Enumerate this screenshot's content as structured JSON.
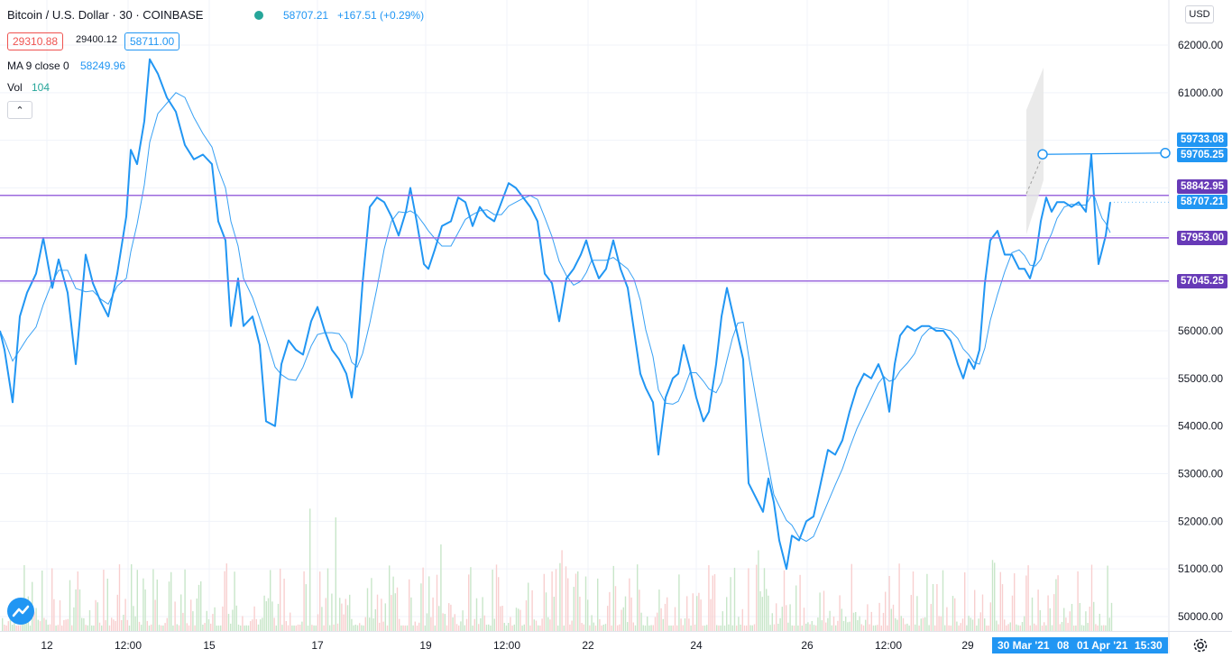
{
  "header": {
    "symbol": "Bitcoin / U.S. Dollar · 30 · COINBASE",
    "last": "58707.21",
    "change": "+167.51 (+0.29%)",
    "bid": "29310.88",
    "spread": "29400.12",
    "ask": "58711.00",
    "ma_label": "MA 9 close 0",
    "ma_value": "58249.96",
    "vol_label": "Vol",
    "vol_value": "104",
    "collapse_glyph": "⌃",
    "currency": "USD"
  },
  "colors": {
    "price_line": "#2196f3",
    "hline": "#9c6ade",
    "hline_label_bg": "#673ab7",
    "price_label_bg": "#2196f3",
    "time_label_bg": "#2196f3",
    "vol_up": "#c8e6c9",
    "vol_down": "#f8cfcf"
  },
  "price_labels": {
    "h1": "59733.08",
    "h2": "59705.25",
    "line1": "58842.95",
    "cur": "58707.21",
    "line2": "57953.00",
    "line3": "57045.25"
  },
  "time_labels": {
    "a": "30 Mar '21",
    "b": "08",
    "c": "01 Apr '21",
    "d": "15:30"
  },
  "chart_data": {
    "type": "line",
    "title": "Bitcoin / U.S. Dollar · 30 · COINBASE",
    "x_ticks": [
      "12",
      "12:00",
      "15",
      "17",
      "19",
      "12:00",
      "22",
      "24",
      "26",
      "12:00",
      "29"
    ],
    "y_ticks": [
      "62000.00",
      "61000.00",
      "60000.00",
      "59000.00",
      "58000.00",
      "57000.00",
      "56000.00",
      "55000.00",
      "54000.00",
      "53000.00",
      "52000.00",
      "51000.00",
      "50000.00"
    ],
    "ylim": [
      49900,
      62250
    ],
    "horizontal_lines": [
      58842.95,
      57953.0,
      57045.25
    ],
    "trend_line": [
      59705.25,
      59733.08
    ],
    "series": [
      {
        "points": [
          [
            0,
            56000
          ],
          [
            5,
            55600
          ],
          [
            14,
            54500
          ],
          [
            22,
            56300
          ],
          [
            30,
            56800
          ],
          [
            40,
            57200
          ],
          [
            48,
            57950
          ],
          [
            58,
            56900
          ],
          [
            65,
            57500
          ],
          [
            75,
            56800
          ],
          [
            84,
            55300
          ],
          [
            95,
            57600
          ],
          [
            103,
            57000
          ],
          [
            112,
            56600
          ],
          [
            120,
            56300
          ],
          [
            130,
            57200
          ],
          [
            140,
            58400
          ],
          [
            145,
            59800
          ],
          [
            152,
            59500
          ],
          [
            160,
            60400
          ],
          [
            166,
            61700
          ],
          [
            175,
            61400
          ],
          [
            185,
            60900
          ],
          [
            195,
            60600
          ],
          [
            205,
            59900
          ],
          [
            215,
            59600
          ],
          [
            225,
            59700
          ],
          [
            235,
            59500
          ],
          [
            242,
            58300
          ],
          [
            250,
            57900
          ],
          [
            256,
            56100
          ],
          [
            264,
            57100
          ],
          [
            270,
            56100
          ],
          [
            280,
            56300
          ],
          [
            288,
            55700
          ],
          [
            295,
            54100
          ],
          [
            305,
            54000
          ],
          [
            312,
            55300
          ],
          [
            320,
            55800
          ],
          [
            328,
            55600
          ],
          [
            336,
            55500
          ],
          [
            345,
            56200
          ],
          [
            352,
            56500
          ],
          [
            360,
            56000
          ],
          [
            368,
            55600
          ],
          [
            376,
            55400
          ],
          [
            384,
            55100
          ],
          [
            390,
            54600
          ],
          [
            396,
            55500
          ],
          [
            402,
            57000
          ],
          [
            410,
            58600
          ],
          [
            418,
            58800
          ],
          [
            426,
            58700
          ],
          [
            434,
            58400
          ],
          [
            442,
            58000
          ],
          [
            450,
            58500
          ],
          [
            455,
            59000
          ],
          [
            462,
            58300
          ],
          [
            470,
            57400
          ],
          [
            475,
            57300
          ],
          [
            482,
            57700
          ],
          [
            490,
            58200
          ],
          [
            500,
            58300
          ],
          [
            508,
            58800
          ],
          [
            516,
            58700
          ],
          [
            524,
            58200
          ],
          [
            532,
            58600
          ],
          [
            540,
            58400
          ],
          [
            548,
            58300
          ],
          [
            556,
            58700
          ],
          [
            564,
            59100
          ],
          [
            572,
            59000
          ],
          [
            580,
            58800
          ],
          [
            588,
            58600
          ],
          [
            596,
            58300
          ],
          [
            604,
            57200
          ],
          [
            612,
            57000
          ],
          [
            620,
            56200
          ],
          [
            628,
            57100
          ],
          [
            636,
            57300
          ],
          [
            644,
            57600
          ],
          [
            650,
            57900
          ],
          [
            656,
            57500
          ],
          [
            664,
            57100
          ],
          [
            672,
            57300
          ],
          [
            680,
            57900
          ],
          [
            688,
            57300
          ],
          [
            696,
            56900
          ],
          [
            703,
            56000
          ],
          [
            710,
            55100
          ],
          [
            716,
            54800
          ],
          [
            724,
            54500
          ],
          [
            730,
            53400
          ],
          [
            738,
            54600
          ],
          [
            746,
            55000
          ],
          [
            752,
            55100
          ],
          [
            758,
            55700
          ],
          [
            765,
            55200
          ],
          [
            772,
            54600
          ],
          [
            780,
            54100
          ],
          [
            786,
            54300
          ],
          [
            794,
            55300
          ],
          [
            800,
            56300
          ],
          [
            806,
            56900
          ],
          [
            812,
            56400
          ],
          [
            818,
            55900
          ],
          [
            824,
            55400
          ],
          [
            830,
            52800
          ],
          [
            838,
            52500
          ],
          [
            846,
            52200
          ],
          [
            852,
            52900
          ],
          [
            858,
            52400
          ],
          [
            864,
            51600
          ],
          [
            872,
            51000
          ],
          [
            878,
            51700
          ],
          [
            886,
            51600
          ],
          [
            894,
            52000
          ],
          [
            902,
            52100
          ],
          [
            910,
            52800
          ],
          [
            918,
            53500
          ],
          [
            926,
            53400
          ],
          [
            934,
            53700
          ],
          [
            942,
            54300
          ],
          [
            950,
            54800
          ],
          [
            958,
            55100
          ],
          [
            966,
            55000
          ],
          [
            974,
            55300
          ],
          [
            980,
            55000
          ],
          [
            986,
            54300
          ],
          [
            992,
            55300
          ],
          [
            998,
            55900
          ],
          [
            1006,
            56100
          ],
          [
            1014,
            56000
          ],
          [
            1022,
            56100
          ],
          [
            1030,
            56100
          ],
          [
            1038,
            56000
          ],
          [
            1046,
            56000
          ],
          [
            1054,
            55800
          ],
          [
            1062,
            55300
          ],
          [
            1068,
            55000
          ],
          [
            1074,
            55400
          ],
          [
            1080,
            55200
          ],
          [
            1086,
            55600
          ],
          [
            1092,
            57000
          ],
          [
            1098,
            57900
          ],
          [
            1106,
            58100
          ],
          [
            1114,
            57600
          ],
          [
            1122,
            57600
          ],
          [
            1130,
            57300
          ],
          [
            1136,
            57300
          ],
          [
            1142,
            57100
          ],
          [
            1148,
            57500
          ],
          [
            1154,
            58300
          ],
          [
            1160,
            58800
          ],
          [
            1166,
            58500
          ],
          [
            1172,
            58700
          ],
          [
            1180,
            58700
          ],
          [
            1188,
            58600
          ],
          [
            1196,
            58700
          ],
          [
            1204,
            58500
          ],
          [
            1210,
            59700
          ],
          [
            1214,
            58500
          ],
          [
            1218,
            57400
          ],
          [
            1222,
            57700
          ],
          [
            1226,
            58000
          ],
          [
            1231,
            58700
          ]
        ]
      }
    ]
  }
}
